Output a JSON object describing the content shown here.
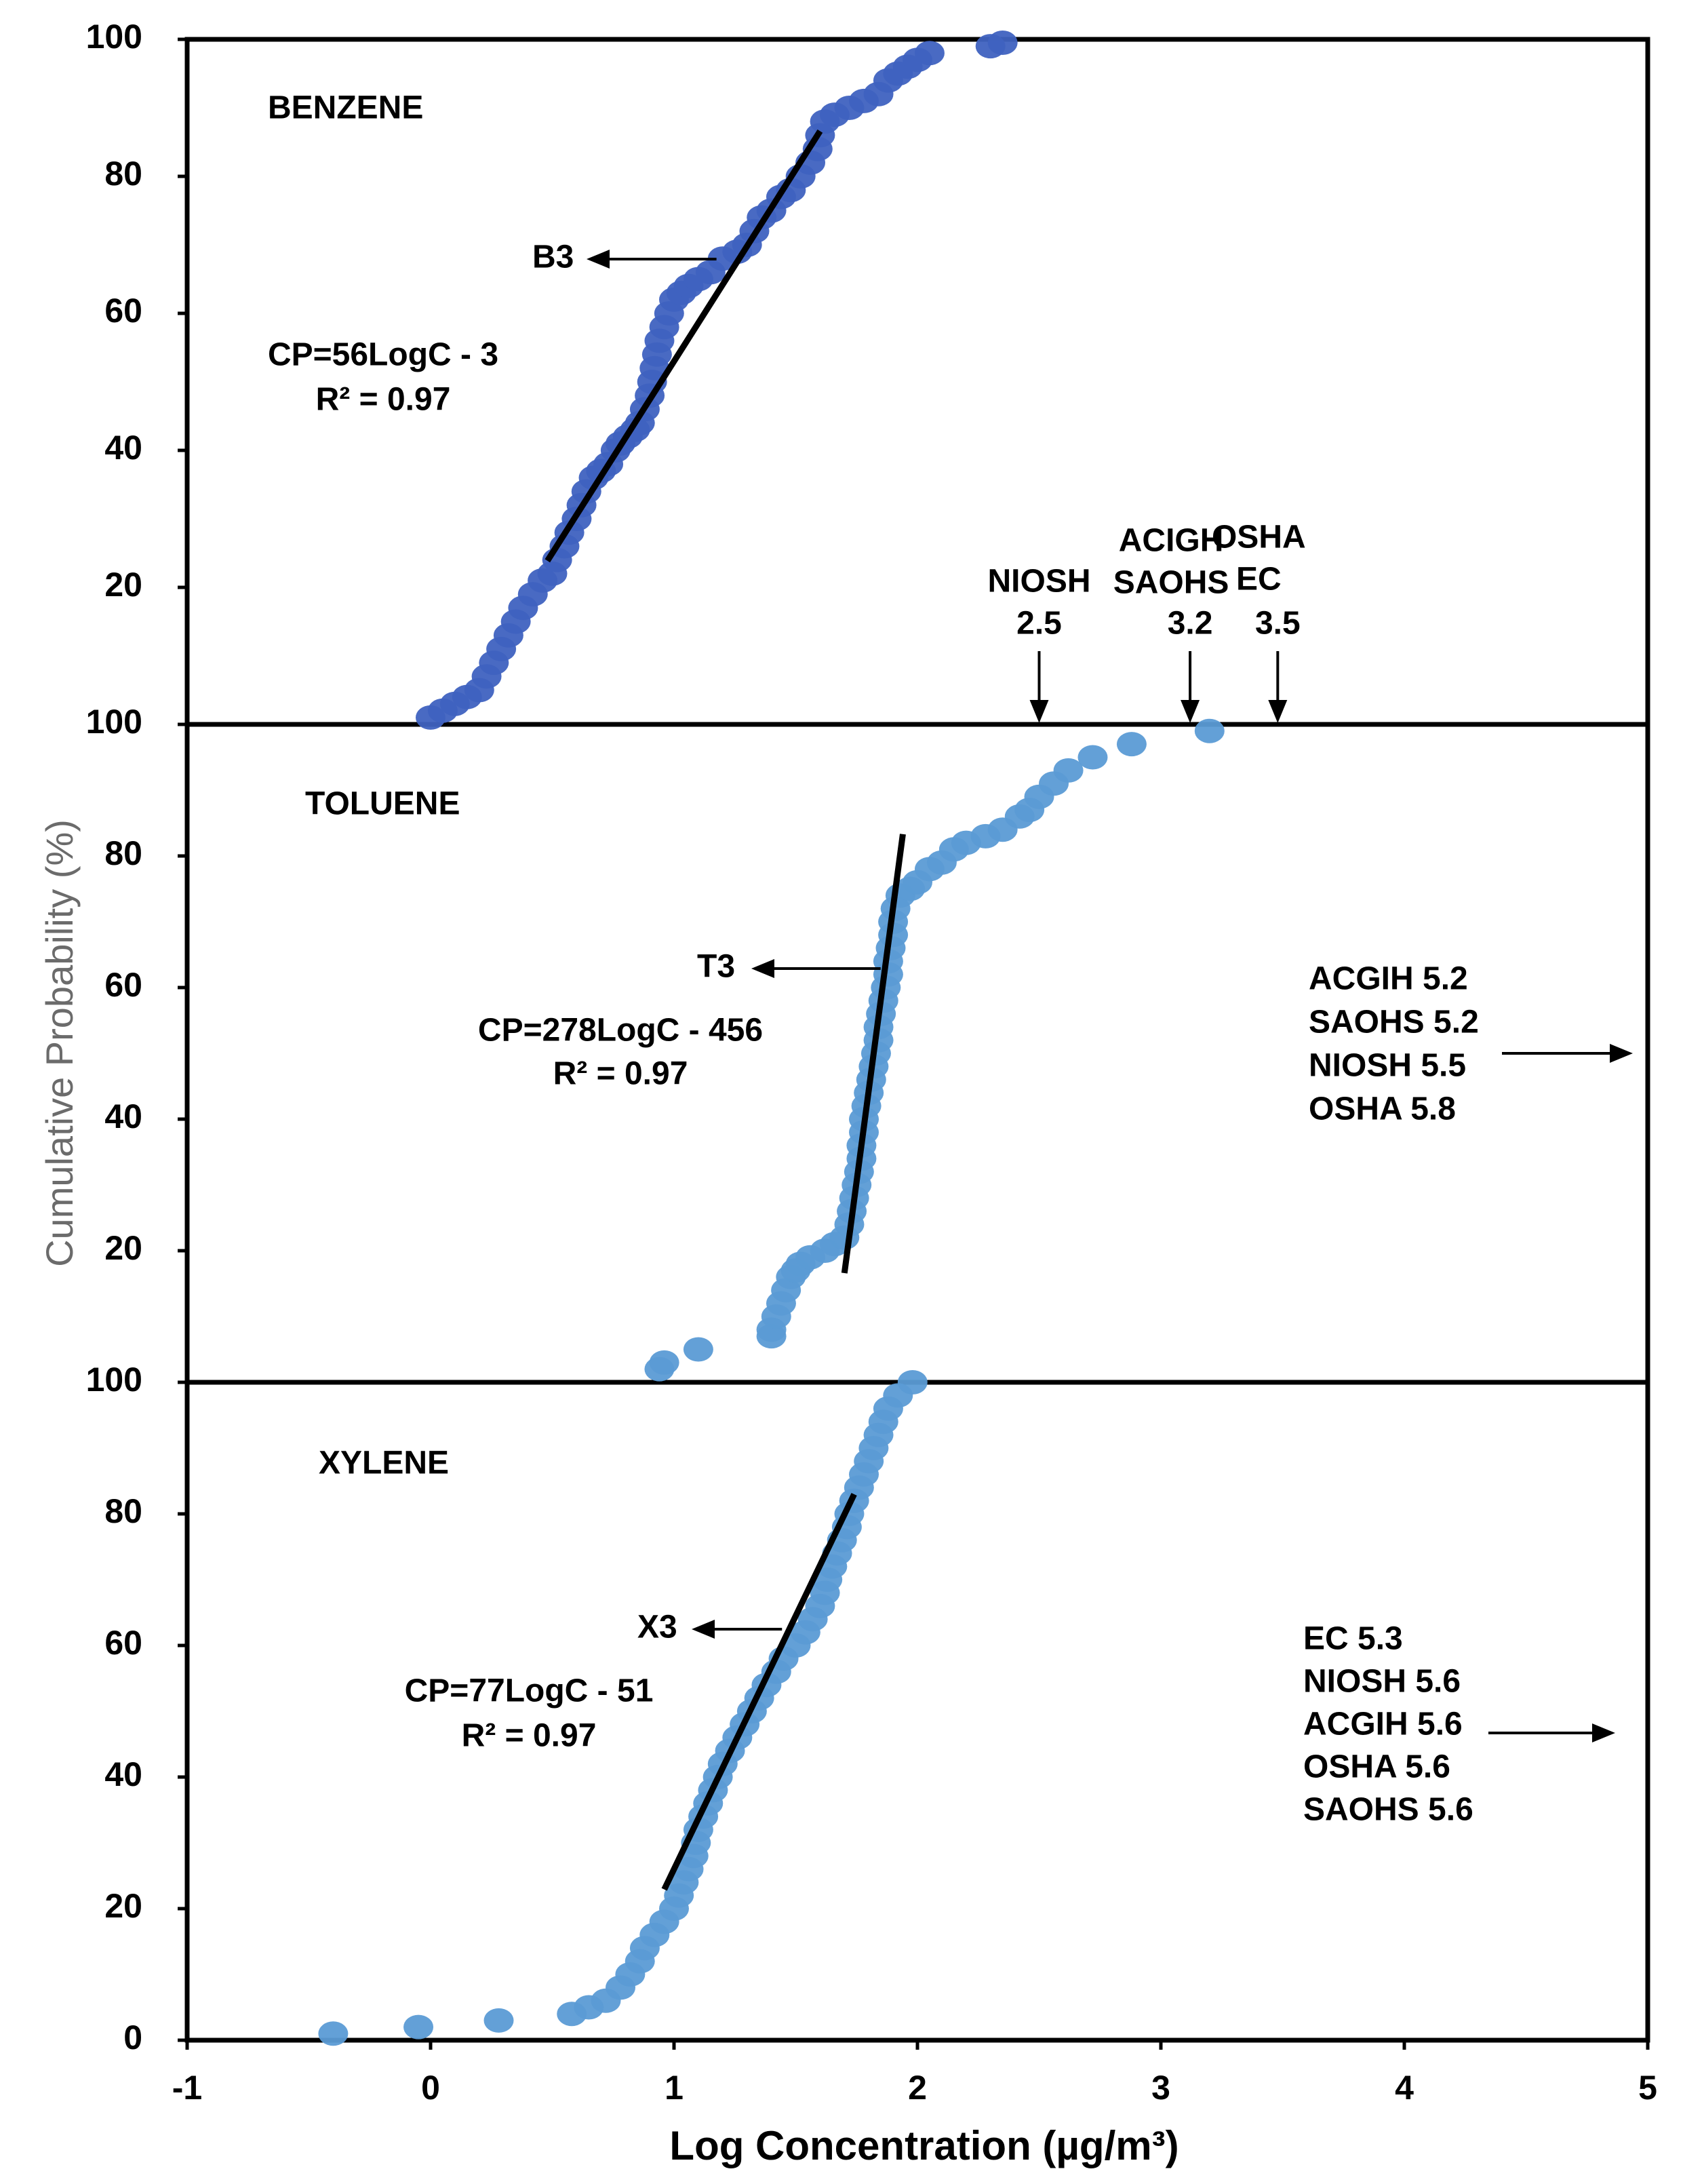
{
  "chart_data": {
    "type": "scatter",
    "xlabel": "Log Concentration (µg/m³)",
    "ylabel": "Cumulative Probability (%)",
    "xlim": [
      -1,
      5
    ],
    "x_ticks": [
      "-1",
      "0",
      "1",
      "2",
      "3",
      "4",
      "5"
    ],
    "panels": [
      {
        "name": "BENZENE",
        "ylim": [
          0,
          100
        ],
        "y_ticks": [
          "100",
          "80",
          "60",
          "40",
          "20"
        ],
        "color": "#3f62c0",
        "fit": {
          "label": "B3",
          "equation": "CP=56LogC - 3",
          "r2": "R² = 0.97",
          "x_range": [
            0.48,
            1.6
          ]
        },
        "points": [
          [
            0.0,
            1
          ],
          [
            0.05,
            2
          ],
          [
            0.1,
            3
          ],
          [
            0.15,
            4
          ],
          [
            0.2,
            5
          ],
          [
            0.23,
            7
          ],
          [
            0.26,
            9
          ],
          [
            0.29,
            11
          ],
          [
            0.32,
            13
          ],
          [
            0.35,
            15
          ],
          [
            0.38,
            17
          ],
          [
            0.42,
            19
          ],
          [
            0.46,
            21
          ],
          [
            0.5,
            22
          ],
          [
            0.52,
            24
          ],
          [
            0.55,
            26
          ],
          [
            0.57,
            28
          ],
          [
            0.6,
            30
          ],
          [
            0.62,
            32
          ],
          [
            0.64,
            34
          ],
          [
            0.67,
            36
          ],
          [
            0.7,
            37
          ],
          [
            0.73,
            38
          ],
          [
            0.76,
            40
          ],
          [
            0.78,
            41
          ],
          [
            0.81,
            42
          ],
          [
            0.84,
            43
          ],
          [
            0.86,
            44
          ],
          [
            0.88,
            46
          ],
          [
            0.9,
            48
          ],
          [
            0.91,
            50
          ],
          [
            0.92,
            52
          ],
          [
            0.93,
            54
          ],
          [
            0.94,
            56
          ],
          [
            0.96,
            58
          ],
          [
            0.98,
            60
          ],
          [
            1.0,
            62
          ],
          [
            1.03,
            63
          ],
          [
            1.06,
            64
          ],
          [
            1.1,
            65
          ],
          [
            1.15,
            66
          ],
          [
            1.2,
            68
          ],
          [
            1.26,
            69
          ],
          [
            1.3,
            70
          ],
          [
            1.33,
            72
          ],
          [
            1.36,
            74
          ],
          [
            1.4,
            75
          ],
          [
            1.44,
            77
          ],
          [
            1.48,
            78
          ],
          [
            1.52,
            80
          ],
          [
            1.56,
            82
          ],
          [
            1.59,
            84
          ],
          [
            1.6,
            86
          ],
          [
            1.62,
            88
          ],
          [
            1.66,
            89
          ],
          [
            1.72,
            90
          ],
          [
            1.78,
            91
          ],
          [
            1.84,
            92
          ],
          [
            1.88,
            94
          ],
          [
            1.92,
            95
          ],
          [
            1.96,
            96
          ],
          [
            2.0,
            97
          ],
          [
            2.05,
            98
          ],
          [
            2.3,
            99
          ],
          [
            2.35,
            99.5
          ]
        ],
        "limits_above": [
          {
            "agency": "NIOSH",
            "value": "2.5",
            "x": 2.5
          },
          {
            "agency": "ACIGH\nSAOHS",
            "value": "3.2",
            "x": 3.12
          },
          {
            "agency": "OSHA\nEC",
            "value": "3.5",
            "x": 3.48
          }
        ]
      },
      {
        "name": "TOLUENE",
        "ylim": [
          0,
          100
        ],
        "y_ticks": [
          "100",
          "80",
          "60",
          "40",
          "20"
        ],
        "color": "#5b9bd5",
        "fit": {
          "label": "T3",
          "equation": "CP=278LogC - 456",
          "r2": "R² = 0.97",
          "x_range": [
            1.7,
            1.94
          ]
        },
        "points": [
          [
            0.94,
            2
          ],
          [
            0.96,
            3
          ],
          [
            1.1,
            5
          ],
          [
            1.4,
            7
          ],
          [
            1.4,
            8
          ],
          [
            1.42,
            10
          ],
          [
            1.44,
            12
          ],
          [
            1.46,
            14
          ],
          [
            1.48,
            16
          ],
          [
            1.5,
            17
          ],
          [
            1.52,
            18
          ],
          [
            1.56,
            19
          ],
          [
            1.62,
            20
          ],
          [
            1.66,
            21
          ],
          [
            1.7,
            22
          ],
          [
            1.72,
            24
          ],
          [
            1.73,
            26
          ],
          [
            1.74,
            28
          ],
          [
            1.75,
            30
          ],
          [
            1.76,
            32
          ],
          [
            1.77,
            34
          ],
          [
            1.77,
            36
          ],
          [
            1.78,
            38
          ],
          [
            1.78,
            40
          ],
          [
            1.79,
            42
          ],
          [
            1.8,
            44
          ],
          [
            1.81,
            46
          ],
          [
            1.82,
            48
          ],
          [
            1.83,
            50
          ],
          [
            1.84,
            52
          ],
          [
            1.84,
            54
          ],
          [
            1.85,
            56
          ],
          [
            1.86,
            58
          ],
          [
            1.87,
            60
          ],
          [
            1.88,
            62
          ],
          [
            1.88,
            64
          ],
          [
            1.89,
            66
          ],
          [
            1.9,
            68
          ],
          [
            1.9,
            70
          ],
          [
            1.91,
            72
          ],
          [
            1.93,
            74
          ],
          [
            1.97,
            75
          ],
          [
            2.0,
            76
          ],
          [
            2.05,
            78
          ],
          [
            2.1,
            79
          ],
          [
            2.15,
            81
          ],
          [
            2.2,
            82
          ],
          [
            2.28,
            83
          ],
          [
            2.35,
            84
          ],
          [
            2.42,
            86
          ],
          [
            2.46,
            87
          ],
          [
            2.5,
            89
          ],
          [
            2.56,
            91
          ],
          [
            2.62,
            93
          ],
          [
            2.72,
            95
          ],
          [
            2.88,
            97
          ],
          [
            3.2,
            99
          ]
        ],
        "limits_right": [
          "ACGIH 5.2",
          "SAOHS 5.2",
          "NIOSH 5.5",
          "OSHA 5.8"
        ]
      },
      {
        "name": "XYLENE",
        "ylim": [
          0,
          100
        ],
        "y_ticks": [
          "100",
          "80",
          "60",
          "40",
          "20",
          "0"
        ],
        "color": "#5b9bd5",
        "fit": {
          "label": "X3",
          "equation": "CP=77LogC - 51",
          "r2": "R² = 0.97",
          "x_range": [
            0.96,
            1.74
          ]
        },
        "points": [
          [
            -0.4,
            1
          ],
          [
            -0.05,
            2
          ],
          [
            0.28,
            3
          ],
          [
            0.58,
            4
          ],
          [
            0.65,
            5
          ],
          [
            0.72,
            6
          ],
          [
            0.78,
            8
          ],
          [
            0.82,
            10
          ],
          [
            0.86,
            12
          ],
          [
            0.88,
            14
          ],
          [
            0.92,
            16
          ],
          [
            0.96,
            18
          ],
          [
            1.0,
            20
          ],
          [
            1.02,
            22
          ],
          [
            1.04,
            24
          ],
          [
            1.06,
            26
          ],
          [
            1.08,
            28
          ],
          [
            1.09,
            30
          ],
          [
            1.1,
            32
          ],
          [
            1.12,
            34
          ],
          [
            1.14,
            36
          ],
          [
            1.16,
            38
          ],
          [
            1.18,
            40
          ],
          [
            1.2,
            42
          ],
          [
            1.23,
            44
          ],
          [
            1.26,
            46
          ],
          [
            1.29,
            48
          ],
          [
            1.32,
            50
          ],
          [
            1.35,
            52
          ],
          [
            1.38,
            54
          ],
          [
            1.42,
            56
          ],
          [
            1.45,
            58
          ],
          [
            1.5,
            60
          ],
          [
            1.54,
            62
          ],
          [
            1.57,
            64
          ],
          [
            1.6,
            66
          ],
          [
            1.62,
            68
          ],
          [
            1.63,
            70
          ],
          [
            1.65,
            72
          ],
          [
            1.67,
            74
          ],
          [
            1.69,
            76
          ],
          [
            1.71,
            78
          ],
          [
            1.72,
            80
          ],
          [
            1.74,
            82
          ],
          [
            1.76,
            84
          ],
          [
            1.78,
            86
          ],
          [
            1.8,
            88
          ],
          [
            1.82,
            90
          ],
          [
            1.84,
            92
          ],
          [
            1.86,
            94
          ],
          [
            1.88,
            96
          ],
          [
            1.92,
            98
          ],
          [
            1.98,
            100
          ]
        ],
        "limits_right": [
          "EC 5.3",
          "NIOSH 5.6",
          "ACGIH 5.6",
          "OSHA 5.6",
          "SAOHS 5.6"
        ]
      }
    ]
  }
}
